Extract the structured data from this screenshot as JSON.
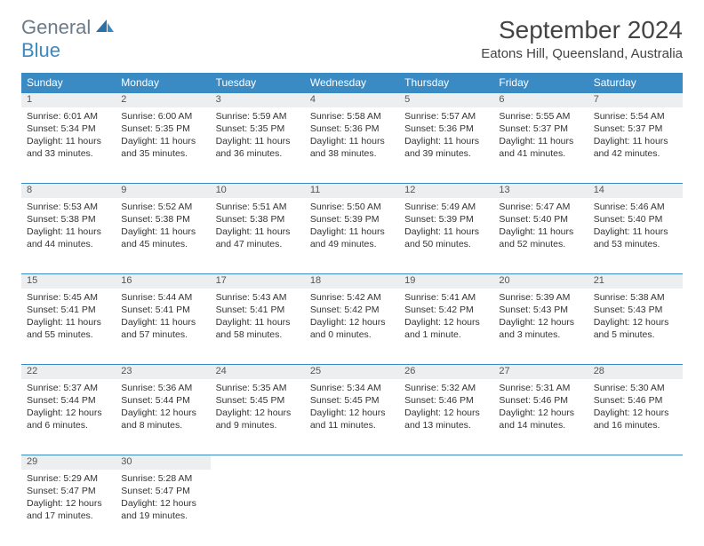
{
  "logo": {
    "text1": "General",
    "text2": "Blue"
  },
  "title": "September 2024",
  "location": "Eatons Hill, Queensland, Australia",
  "colors": {
    "header_bg": "#3a8ac4",
    "header_text": "#ffffff",
    "daynum_bg": "#eceeef",
    "border": "#3a8ac4",
    "body_text": "#333333",
    "logo_gray": "#6b7b8a",
    "logo_blue": "#3a8ac4"
  },
  "typography": {
    "title_fontsize": 28,
    "location_fontsize": 15,
    "dayhead_fontsize": 12,
    "daynum_fontsize": 11,
    "cell_fontsize": 10.5
  },
  "calendar": {
    "type": "table",
    "columns": [
      "Sunday",
      "Monday",
      "Tuesday",
      "Wednesday",
      "Thursday",
      "Friday",
      "Saturday"
    ],
    "weeks": [
      [
        {
          "day": "1",
          "sunrise": "6:01 AM",
          "sunset": "5:34 PM",
          "daylight": "11 hours and 33 minutes."
        },
        {
          "day": "2",
          "sunrise": "6:00 AM",
          "sunset": "5:35 PM",
          "daylight": "11 hours and 35 minutes."
        },
        {
          "day": "3",
          "sunrise": "5:59 AM",
          "sunset": "5:35 PM",
          "daylight": "11 hours and 36 minutes."
        },
        {
          "day": "4",
          "sunrise": "5:58 AM",
          "sunset": "5:36 PM",
          "daylight": "11 hours and 38 minutes."
        },
        {
          "day": "5",
          "sunrise": "5:57 AM",
          "sunset": "5:36 PM",
          "daylight": "11 hours and 39 minutes."
        },
        {
          "day": "6",
          "sunrise": "5:55 AM",
          "sunset": "5:37 PM",
          "daylight": "11 hours and 41 minutes."
        },
        {
          "day": "7",
          "sunrise": "5:54 AM",
          "sunset": "5:37 PM",
          "daylight": "11 hours and 42 minutes."
        }
      ],
      [
        {
          "day": "8",
          "sunrise": "5:53 AM",
          "sunset": "5:38 PM",
          "daylight": "11 hours and 44 minutes."
        },
        {
          "day": "9",
          "sunrise": "5:52 AM",
          "sunset": "5:38 PM",
          "daylight": "11 hours and 45 minutes."
        },
        {
          "day": "10",
          "sunrise": "5:51 AM",
          "sunset": "5:38 PM",
          "daylight": "11 hours and 47 minutes."
        },
        {
          "day": "11",
          "sunrise": "5:50 AM",
          "sunset": "5:39 PM",
          "daylight": "11 hours and 49 minutes."
        },
        {
          "day": "12",
          "sunrise": "5:49 AM",
          "sunset": "5:39 PM",
          "daylight": "11 hours and 50 minutes."
        },
        {
          "day": "13",
          "sunrise": "5:47 AM",
          "sunset": "5:40 PM",
          "daylight": "11 hours and 52 minutes."
        },
        {
          "day": "14",
          "sunrise": "5:46 AM",
          "sunset": "5:40 PM",
          "daylight": "11 hours and 53 minutes."
        }
      ],
      [
        {
          "day": "15",
          "sunrise": "5:45 AM",
          "sunset": "5:41 PM",
          "daylight": "11 hours and 55 minutes."
        },
        {
          "day": "16",
          "sunrise": "5:44 AM",
          "sunset": "5:41 PM",
          "daylight": "11 hours and 57 minutes."
        },
        {
          "day": "17",
          "sunrise": "5:43 AM",
          "sunset": "5:41 PM",
          "daylight": "11 hours and 58 minutes."
        },
        {
          "day": "18",
          "sunrise": "5:42 AM",
          "sunset": "5:42 PM",
          "daylight": "12 hours and 0 minutes."
        },
        {
          "day": "19",
          "sunrise": "5:41 AM",
          "sunset": "5:42 PM",
          "daylight": "12 hours and 1 minute."
        },
        {
          "day": "20",
          "sunrise": "5:39 AM",
          "sunset": "5:43 PM",
          "daylight": "12 hours and 3 minutes."
        },
        {
          "day": "21",
          "sunrise": "5:38 AM",
          "sunset": "5:43 PM",
          "daylight": "12 hours and 5 minutes."
        }
      ],
      [
        {
          "day": "22",
          "sunrise": "5:37 AM",
          "sunset": "5:44 PM",
          "daylight": "12 hours and 6 minutes."
        },
        {
          "day": "23",
          "sunrise": "5:36 AM",
          "sunset": "5:44 PM",
          "daylight": "12 hours and 8 minutes."
        },
        {
          "day": "24",
          "sunrise": "5:35 AM",
          "sunset": "5:45 PM",
          "daylight": "12 hours and 9 minutes."
        },
        {
          "day": "25",
          "sunrise": "5:34 AM",
          "sunset": "5:45 PM",
          "daylight": "12 hours and 11 minutes."
        },
        {
          "day": "26",
          "sunrise": "5:32 AM",
          "sunset": "5:46 PM",
          "daylight": "12 hours and 13 minutes."
        },
        {
          "day": "27",
          "sunrise": "5:31 AM",
          "sunset": "5:46 PM",
          "daylight": "12 hours and 14 minutes."
        },
        {
          "day": "28",
          "sunrise": "5:30 AM",
          "sunset": "5:46 PM",
          "daylight": "12 hours and 16 minutes."
        }
      ],
      [
        {
          "day": "29",
          "sunrise": "5:29 AM",
          "sunset": "5:47 PM",
          "daylight": "12 hours and 17 minutes."
        },
        {
          "day": "30",
          "sunrise": "5:28 AM",
          "sunset": "5:47 PM",
          "daylight": "12 hours and 19 minutes."
        },
        null,
        null,
        null,
        null,
        null
      ]
    ]
  },
  "labels": {
    "sunrise_prefix": "Sunrise: ",
    "sunset_prefix": "Sunset: ",
    "daylight_prefix": "Daylight: "
  }
}
